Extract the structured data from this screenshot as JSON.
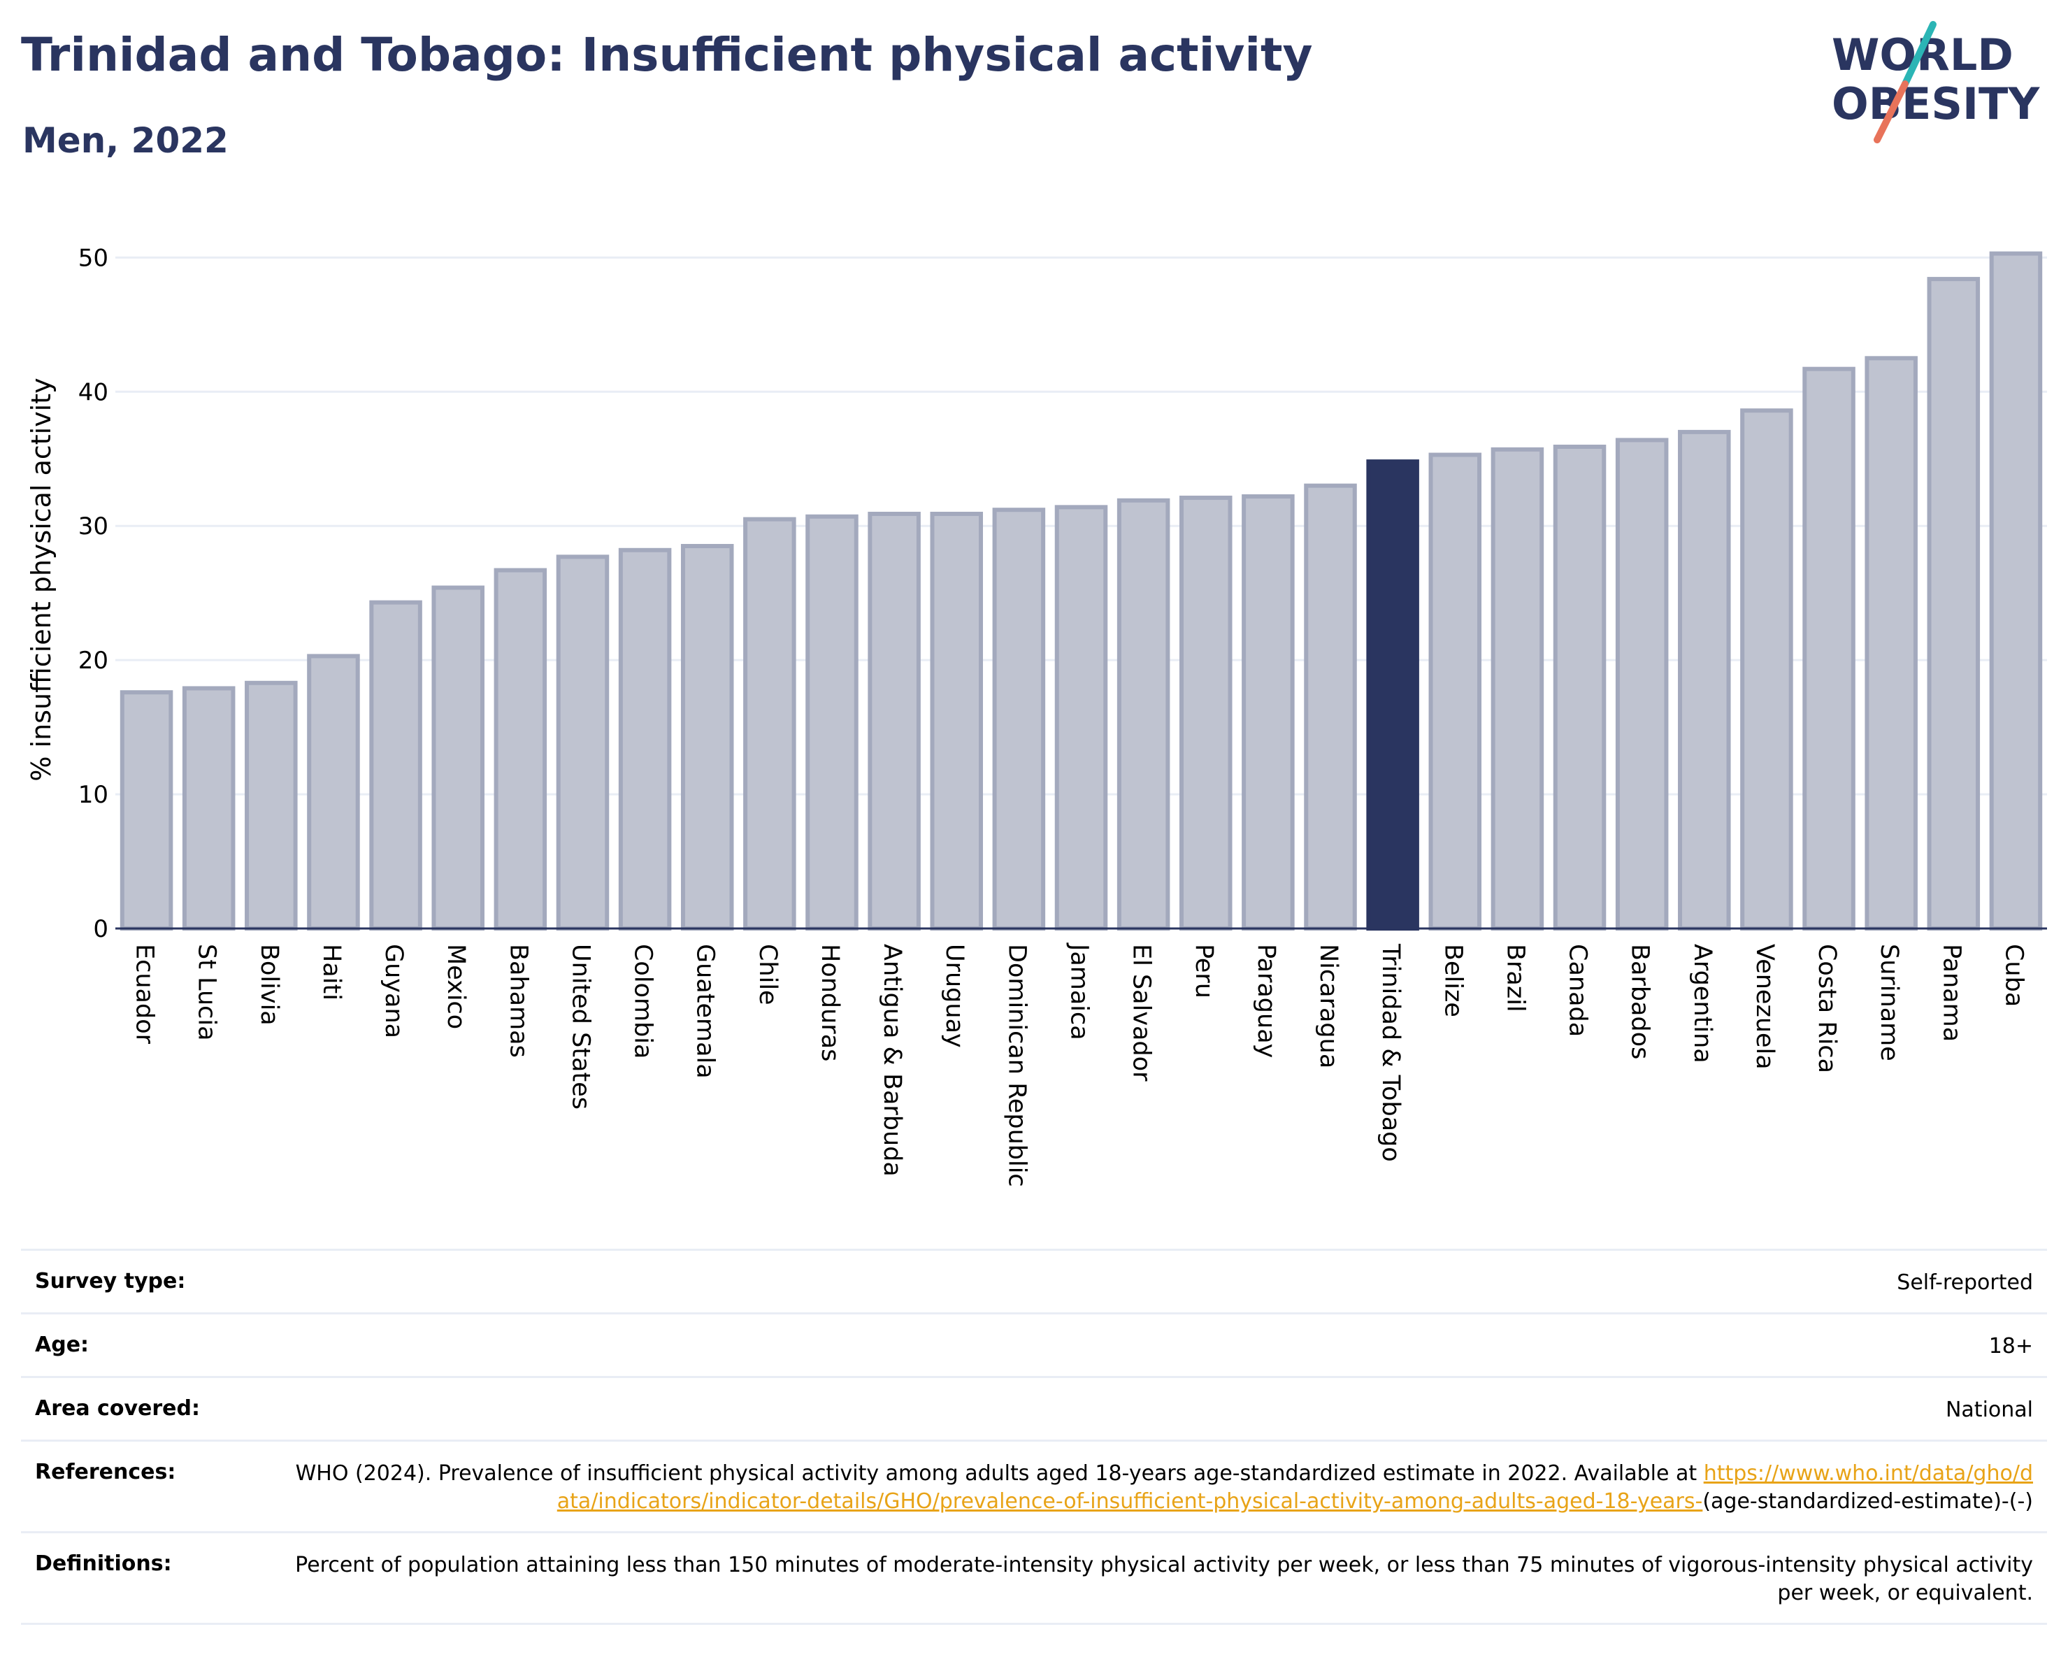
{
  "header": {
    "title": "Trinidad and Tobago: Insufficient physical activity",
    "subtitle": "Men, 2022"
  },
  "logo": {
    "line1": "WORLD",
    "line2": "OBESITY",
    "colors": {
      "text": "#2a3560",
      "slash_teal": "#2bb5b5",
      "slash_coral": "#e8735a"
    }
  },
  "colors": {
    "highlight_bar": "#2a3560",
    "other_bar_fill": "#bfc3d0",
    "other_bar_stroke": "#a3a9bd",
    "grid": "#e9edf5",
    "axis": "#2a3560"
  },
  "chart_data": {
    "type": "bar",
    "title": "Trinidad and Tobago: Insufficient physical activity",
    "subtitle": "Men, 2022",
    "xlabel": "",
    "ylabel": "% insufficient physical activity",
    "ylim": [
      0,
      52
    ],
    "yticks": [
      0,
      10,
      20,
      30,
      40,
      50
    ],
    "grid": true,
    "highlight": "Trinidad & Tobago",
    "categories": [
      "Ecuador",
      "St Lucia",
      "Bolivia",
      "Haiti",
      "Guyana",
      "Mexico",
      "Bahamas",
      "United States",
      "Colombia",
      "Guatemala",
      "Chile",
      "Honduras",
      "Antigua & Barbuda",
      "Uruguay",
      "Dominican Republic",
      "Jamaica",
      "El Salvador",
      "Peru",
      "Paraguay",
      "Nicaragua",
      "Trinidad & Tobago",
      "Belize",
      "Brazil",
      "Canada",
      "Barbados",
      "Argentina",
      "Venezuela",
      "Costa Rica",
      "Suriname",
      "Panama",
      "Cuba"
    ],
    "values": [
      17.6,
      17.9,
      18.3,
      20.3,
      24.3,
      25.4,
      26.7,
      27.7,
      28.2,
      28.5,
      30.5,
      30.7,
      30.9,
      30.9,
      31.2,
      31.4,
      31.9,
      32.1,
      32.2,
      33.0,
      34.8,
      35.3,
      35.7,
      35.9,
      36.4,
      37.0,
      38.6,
      41.7,
      42.5,
      48.4,
      50.3
    ]
  },
  "info": [
    {
      "label": "Survey type:",
      "value": "Self-reported"
    },
    {
      "label": "Age:",
      "value": "18+"
    },
    {
      "label": "Area covered:",
      "value": "National"
    },
    {
      "label": "References:",
      "value": "WHO (2024). Prevalence of insufficient physical activity among adults aged 18-years age-standardized estimate in 2022. Available at ",
      "link": "https://www.who.int/data/gho/data/indicators/indicator-details/GHO/prevalence-of-insufficient-physical-activity-among-adults-aged-18-years-",
      "value_after": "(age-standardized-estimate)-(-)"
    },
    {
      "label": "Definitions:",
      "value": "Percent of population attaining less than 150 minutes of moderate-intensity physical activity per week, or less than 75 minutes of vigorous-intensity physical activity per week, or equivalent."
    }
  ]
}
